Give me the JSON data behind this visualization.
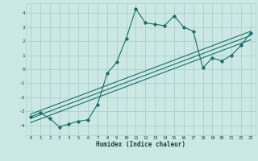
{
  "xlabel": "Humidex (Indice chaleur)",
  "ylabel": "",
  "xlim": [
    -0.5,
    23.5
  ],
  "ylim": [
    -4.7,
    4.7
  ],
  "xticks": [
    0,
    1,
    2,
    3,
    4,
    5,
    6,
    7,
    8,
    9,
    10,
    11,
    12,
    13,
    14,
    15,
    16,
    17,
    18,
    19,
    20,
    21,
    22,
    23
  ],
  "yticks": [
    -4,
    -3,
    -2,
    -1,
    0,
    1,
    2,
    3,
    4
  ],
  "bg_color": "#cce8e4",
  "grid_color": "#aacfcc",
  "line_color": "#1a6e68",
  "main_x": [
    0,
    1,
    2,
    3,
    4,
    5,
    6,
    7,
    8,
    9,
    10,
    11,
    12,
    13,
    14,
    15,
    16,
    17,
    18,
    19,
    20,
    21,
    22,
    23
  ],
  "main_y": [
    -3.4,
    -3.1,
    -3.5,
    -4.1,
    -3.9,
    -3.7,
    -3.6,
    -2.5,
    -0.3,
    0.5,
    2.2,
    4.3,
    3.3,
    3.2,
    3.1,
    3.8,
    3.0,
    2.7,
    0.1,
    0.8,
    0.6,
    1.0,
    1.7,
    2.6
  ],
  "line1_x": [
    0,
    23
  ],
  "line1_y": [
    -3.2,
    2.7
  ],
  "line2_x": [
    0,
    23
  ],
  "line2_y": [
    -3.5,
    2.4
  ],
  "line3_x": [
    0,
    23
  ],
  "line3_y": [
    -3.8,
    2.1
  ],
  "tick_fontsize": 4.0,
  "xlabel_fontsize": 5.5
}
